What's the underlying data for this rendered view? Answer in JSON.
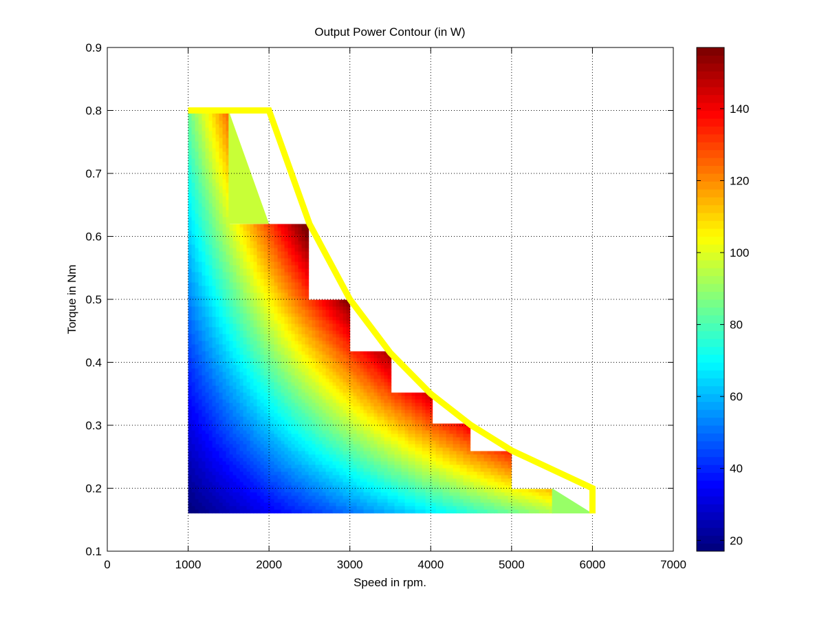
{
  "chart_data": {
    "type": "heatmap",
    "title": "Output Power Contour (in W)",
    "xlabel": "Speed in rpm.",
    "ylabel": "Torque in Nm",
    "xlim": [
      0,
      7000
    ],
    "ylim": [
      0.1,
      0.9
    ],
    "xticks": [
      0,
      1000,
      2000,
      3000,
      4000,
      5000,
      6000,
      7000
    ],
    "yticks": [
      0.1,
      0.2,
      0.3,
      0.4,
      0.5,
      0.6,
      0.7,
      0.8,
      0.9
    ],
    "xtick_labels": [
      "0",
      "1000",
      "2000",
      "3000",
      "4000",
      "5000",
      "6000",
      "7000"
    ],
    "ytick_labels": [
      "0.1",
      "0.2",
      "0.3",
      "0.4",
      "0.5",
      "0.6",
      "0.7",
      "0.8",
      "0.9"
    ],
    "grid": true,
    "colormap": "jet",
    "clim": [
      17,
      157
    ],
    "colorbar_ticks": [
      20,
      40,
      60,
      80,
      100,
      120,
      140
    ],
    "colorbar_tick_labels": [
      "20",
      "40",
      "60",
      "80",
      "100",
      "120",
      "140"
    ],
    "value_formula": "power_W = torque_Nm * speed_rpm * 2*pi/60",
    "filled_region": [
      [
        1000,
        0.16
      ],
      [
        1000,
        0.8
      ],
      [
        1500,
        0.8
      ],
      [
        1500,
        0.62
      ],
      [
        2500,
        0.62
      ],
      [
        2500,
        0.5
      ],
      [
        3000,
        0.5
      ],
      [
        3000,
        0.415
      ],
      [
        3500,
        0.415
      ],
      [
        3500,
        0.35
      ],
      [
        4000,
        0.35
      ],
      [
        4000,
        0.3
      ],
      [
        4500,
        0.3
      ],
      [
        4500,
        0.26
      ],
      [
        5000,
        0.26
      ],
      [
        5000,
        0.2
      ],
      [
        5500,
        0.2
      ],
      [
        5500,
        0.16
      ]
    ],
    "flat_patches": [
      {
        "points": [
          [
            1500,
            0.8
          ],
          [
            1500,
            0.62
          ],
          [
            2000,
            0.62
          ]
        ],
        "value": 97
      },
      {
        "points": [
          [
            5500,
            0.2
          ],
          [
            5500,
            0.16
          ],
          [
            6000,
            0.16
          ]
        ],
        "value": 90
      }
    ],
    "boundary_line": {
      "color": "#ffff00",
      "points": [
        [
          1000,
          0.8
        ],
        [
          2000,
          0.8
        ],
        [
          2500,
          0.62
        ],
        [
          3000,
          0.5
        ],
        [
          3500,
          0.415
        ],
        [
          4000,
          0.35
        ],
        [
          4500,
          0.3
        ],
        [
          5000,
          0.26
        ],
        [
          5500,
          0.23
        ],
        [
          6000,
          0.2
        ],
        [
          6000,
          0.16
        ]
      ]
    }
  }
}
